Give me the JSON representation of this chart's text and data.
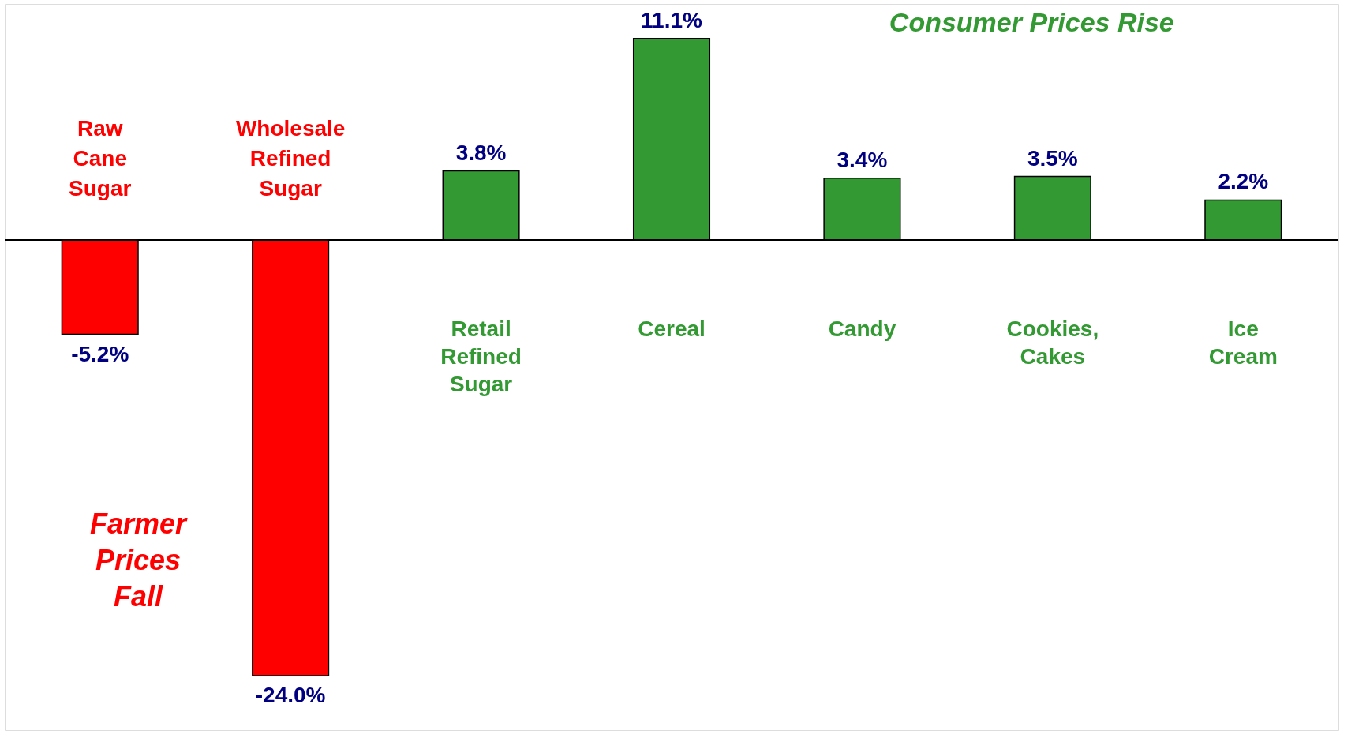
{
  "chart_data": {
    "type": "bar",
    "categories": [
      "Raw Cane Sugar",
      "Wholesale Refined Sugar",
      "Retail Refined Sugar",
      "Cereal",
      "Candy",
      "Cookies, Cakes",
      "Ice Cream"
    ],
    "values": [
      -5.2,
      -24.0,
      3.8,
      11.1,
      3.4,
      3.5,
      2.2
    ],
    "colors": [
      "#ff0000",
      "#ff0000",
      "#339933",
      "#339933",
      "#339933",
      "#339933",
      "#339933"
    ],
    "value_labels": [
      "-5.2%",
      "-24.0%",
      "3.8%",
      "11.1%",
      "3.4%",
      "3.5%",
      "2.2%"
    ],
    "ylim": [
      -27,
      13
    ],
    "tick_labels": false,
    "annotations": [
      "Consumer Prices Rise",
      "Farmer Prices Fall"
    ]
  }
}
